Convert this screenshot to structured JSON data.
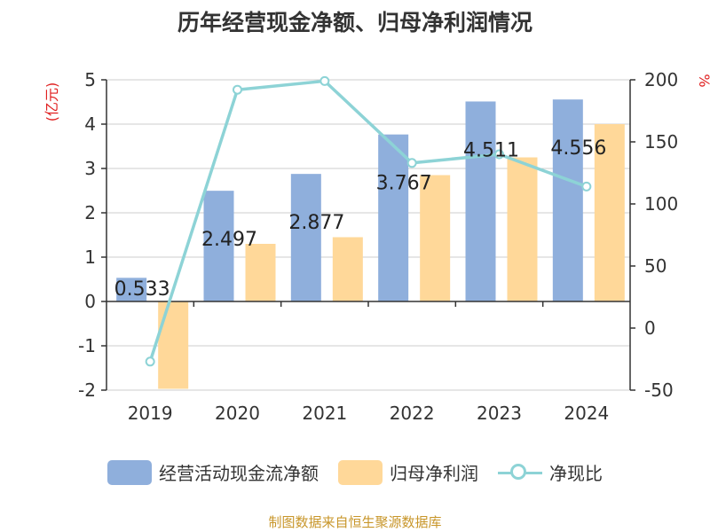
{
  "title": "历年经营现金净额、归母净利润情况",
  "source": "制图数据来自恒生聚源数据库",
  "colors": {
    "bar1": "#8fafdc",
    "bar2": "#ffd899",
    "line": "#8dd3d6",
    "axis_unit_left": "#e02020",
    "axis_unit_right": "#e02020"
  },
  "chart_data": {
    "type": "bar",
    "title": "历年经营现金净额、归母净利润情况",
    "categories": [
      "2019",
      "2020",
      "2021",
      "2022",
      "2023",
      "2024"
    ],
    "series": [
      {
        "name": "经营活动现金流净额",
        "type": "bar",
        "axis": "left",
        "values": [
          0.533,
          2.497,
          2.877,
          3.767,
          4.511,
          4.556
        ]
      },
      {
        "name": "归母净利润",
        "type": "bar",
        "axis": "left",
        "values": [
          -1.97,
          1.3,
          1.45,
          2.85,
          3.25,
          4.0
        ]
      },
      {
        "name": "净现比",
        "type": "line",
        "axis": "right",
        "values": [
          -27,
          192,
          199,
          133,
          140,
          114
        ]
      }
    ],
    "data_labels": [
      "0.533",
      "2.497",
      "2.877",
      "3.767",
      "4.511",
      "4.556"
    ],
    "ylabel_left": "(亿元)",
    "ylabel_right": "%",
    "ylim_left": [
      -2,
      5
    ],
    "ylim_right": [
      -50,
      200
    ],
    "yticks_left": [
      "-2",
      "-1",
      "0",
      "1",
      "2",
      "3",
      "4",
      "5"
    ],
    "yticks_right": [
      "-50",
      "0",
      "50",
      "100",
      "150",
      "200"
    ],
    "grid": true,
    "legend_position": "bottom"
  },
  "legend": {
    "item1": "经营活动现金流净额",
    "item2": "归母净利润",
    "item3": "净现比"
  }
}
